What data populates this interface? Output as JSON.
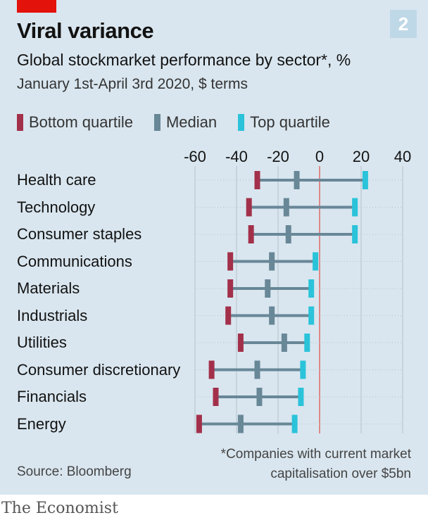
{
  "header": {
    "title": "Viral variance",
    "subtitle": "Global stockmarket performance by sector*, %",
    "date_range": "January 1st-April 3rd 2020, $ terms",
    "chart_number": "2"
  },
  "colors": {
    "background": "#d9e6ef",
    "bottom_quartile": "#a3304a",
    "median": "#688797",
    "top_quartile": "#2ac3da",
    "zero_line": "#e06a6a",
    "grid": "#b5c1c9",
    "brand_tag": "#e3120b"
  },
  "chart_data": {
    "type": "range",
    "title": "Viral variance",
    "subtitle": "Global stockmarket performance by sector*, %",
    "xlim": [
      -60,
      40
    ],
    "x_ticks": [
      -60,
      -40,
      -20,
      0,
      20,
      40
    ],
    "tick_labels": [
      "-60",
      "-40",
      "-20",
      "0",
      "20",
      "40"
    ],
    "legend": [
      {
        "key": "bottom",
        "label": "Bottom quartile"
      },
      {
        "key": "median",
        "label": "Median"
      },
      {
        "key": "top",
        "label": "Top quartile"
      }
    ],
    "legend_placement": "top",
    "grid": true,
    "categories": [
      "Health care",
      "Technology",
      "Consumer staples",
      "Communications",
      "Materials",
      "Industrials",
      "Utilities",
      "Consumer discretionary",
      "Financials",
      "Energy"
    ],
    "series": [
      {
        "key": "bottom",
        "name": "Bottom quartile",
        "values": [
          -30,
          -34,
          -33,
          -43,
          -43,
          -44,
          -38,
          -52,
          -50,
          -58
        ]
      },
      {
        "key": "median",
        "name": "Median",
        "values": [
          -11,
          -16,
          -15,
          -23,
          -25,
          -23,
          -17,
          -30,
          -29,
          -38
        ]
      },
      {
        "key": "top",
        "name": "Top quartile",
        "values": [
          22,
          17,
          17,
          -2,
          -4,
          -4,
          -6,
          -8,
          -9,
          -12
        ]
      }
    ]
  },
  "footer": {
    "source": "Source: Bloomberg",
    "footnote_line1": "*Companies with current market",
    "footnote_line2": "capitalisation over $5bn",
    "brand": "The Economist"
  }
}
